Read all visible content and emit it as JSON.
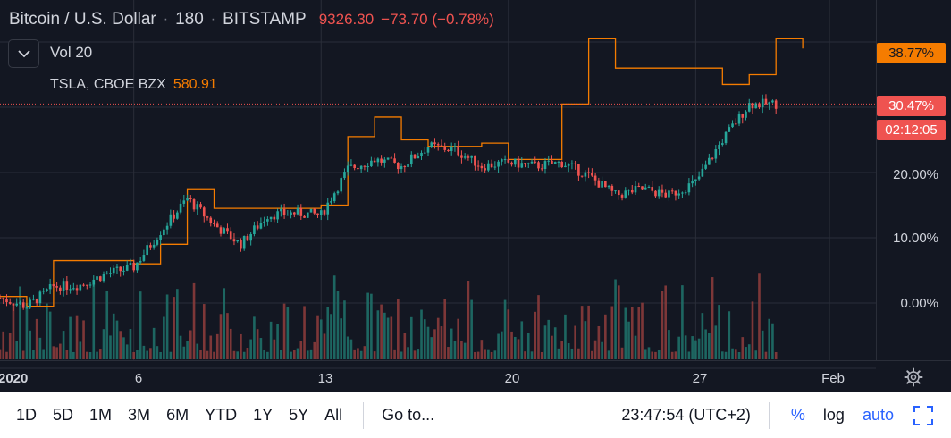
{
  "legend": {
    "symbol": "Bitcoin / U.S. Dollar",
    "interval": "180",
    "exchange": "BITSTAMP",
    "price": "9326.30",
    "change": "−73.70 (−0.78%)",
    "volume": "Vol 20",
    "compare_symbol": "TSLA, CBOE BZX",
    "compare_value": "580.91"
  },
  "price_axis": {
    "labels": [
      "20.00%",
      "10.00%",
      "0.00%"
    ],
    "compare_badge": "38.77%",
    "last_badge": "30.47%",
    "countdown_badge": "02:12:05"
  },
  "time_axis": {
    "labels": [
      "2020",
      "6",
      "13",
      "20",
      "27",
      "Feb"
    ]
  },
  "toolbar": {
    "ranges": [
      "1D",
      "5D",
      "1M",
      "3M",
      "6M",
      "YTD",
      "1Y",
      "5Y",
      "All"
    ],
    "goto": "Go to...",
    "clock": "23:47:54 (UTC+2)",
    "percent": "%",
    "log": "log",
    "auto": "auto"
  },
  "colors": {
    "up": "#26a69a",
    "down": "#ef5350",
    "compare": "#f57c00",
    "background": "#131722",
    "active": "#2962ff"
  },
  "chart_data": {
    "type": "candlestick",
    "main_series": "Bitcoin / U.S. Dollar",
    "compare_series": "TSLA, CBOE BZX",
    "y_unit": "%",
    "ylim": [
      -8,
      44
    ],
    "xlim": [
      "2020-01-01",
      "2020-02-02"
    ],
    "close_path": [
      [
        "2020-01-01",
        0.8
      ],
      [
        "2020-01-02",
        -0.5
      ],
      [
        "2020-01-03",
        2.5
      ],
      [
        "2020-01-04",
        2.8
      ],
      [
        "2020-01-05",
        4.5
      ],
      [
        "2020-01-06",
        5.5
      ],
      [
        "2020-01-07",
        11.0
      ],
      [
        "2020-01-08",
        16.0
      ],
      [
        "2020-01-09",
        12.0
      ],
      [
        "2020-01-10",
        9.0
      ],
      [
        "2020-01-11",
        13.5
      ],
      [
        "2020-01-12",
        13.8
      ],
      [
        "2020-01-13",
        13.5
      ],
      [
        "2020-01-14",
        20.5
      ],
      [
        "2020-01-15",
        22.0
      ],
      [
        "2020-01-16",
        21.0
      ],
      [
        "2020-01-17",
        24.0
      ],
      [
        "2020-01-18",
        23.5
      ],
      [
        "2020-01-19",
        21.0
      ],
      [
        "2020-01-20",
        21.5
      ],
      [
        "2020-01-21",
        21.0
      ],
      [
        "2020-01-22",
        21.5
      ],
      [
        "2020-01-23",
        19.5
      ],
      [
        "2020-01-24",
        16.5
      ],
      [
        "2020-01-25",
        17.5
      ],
      [
        "2020-01-26",
        16.5
      ],
      [
        "2020-01-27",
        18.5
      ],
      [
        "2020-01-28",
        25.0
      ],
      [
        "2020-01-29",
        30.5
      ],
      [
        "2020-01-30",
        30.5
      ]
    ],
    "compare_path": [
      [
        "2020-01-01",
        1.0
      ],
      [
        "2020-01-02",
        -0.5
      ],
      [
        "2020-01-03",
        6.5
      ],
      [
        "2020-01-06",
        6.0
      ],
      [
        "2020-01-07",
        9.0
      ],
      [
        "2020-01-08",
        17.5
      ],
      [
        "2020-01-09",
        14.5
      ],
      [
        "2020-01-11",
        14.5
      ],
      [
        "2020-01-13",
        15.0
      ],
      [
        "2020-01-14",
        25.5
      ],
      [
        "2020-01-15",
        28.5
      ],
      [
        "2020-01-16",
        25.0
      ],
      [
        "2020-01-17",
        24.0
      ],
      [
        "2020-01-19",
        24.5
      ],
      [
        "2020-01-20",
        22.0
      ],
      [
        "2020-01-22",
        30.5
      ],
      [
        "2020-01-23",
        40.5
      ],
      [
        "2020-01-24",
        36.0
      ],
      [
        "2020-01-26",
        36.0
      ],
      [
        "2020-01-28",
        33.5
      ],
      [
        "2020-01-29",
        35.0
      ],
      [
        "2020-01-30",
        40.5
      ],
      [
        "2020-01-31",
        39.0
      ]
    ]
  }
}
